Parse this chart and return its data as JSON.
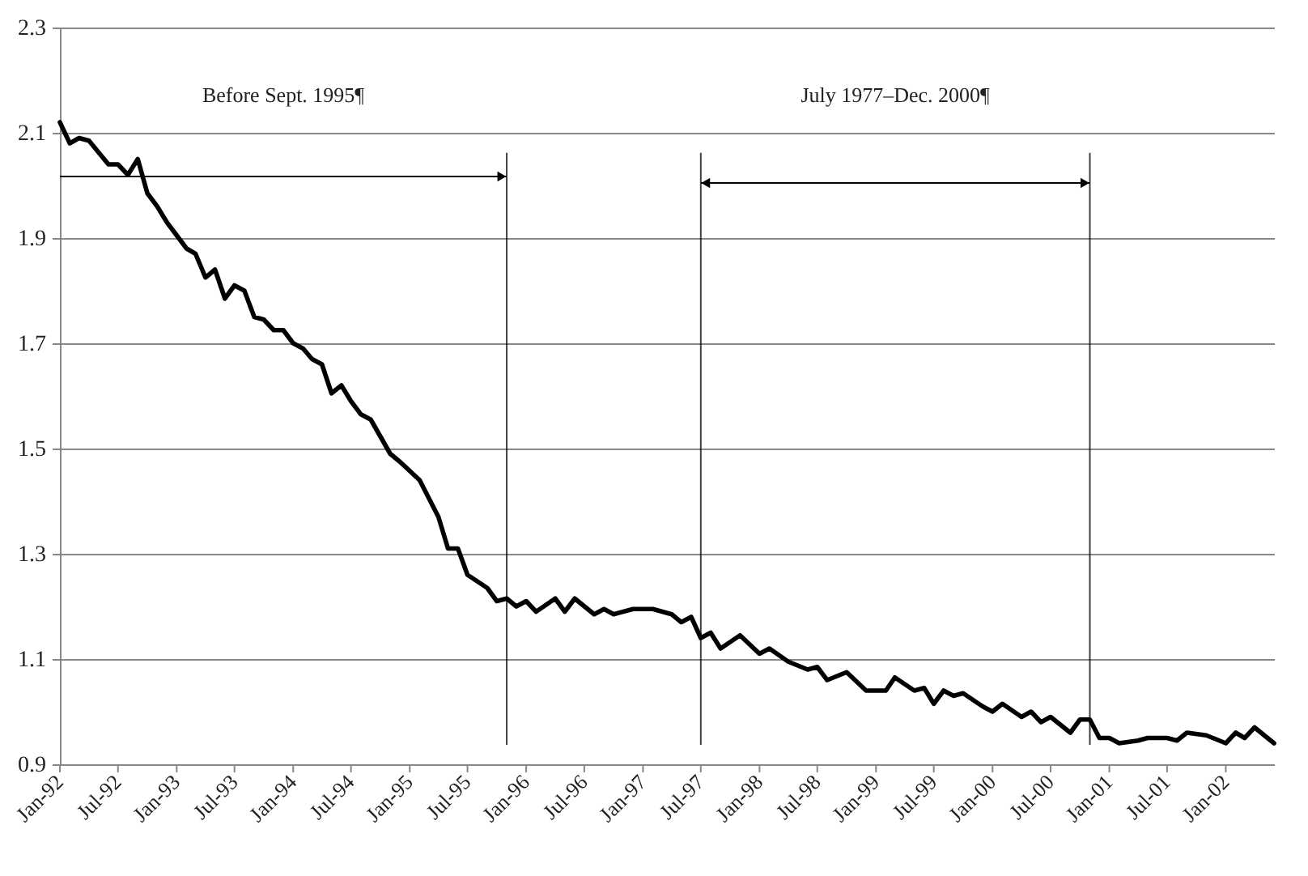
{
  "chart_data": {
    "type": "line",
    "x": [
      "1992-01",
      "1992-02",
      "1992-03",
      "1992-04",
      "1992-06",
      "1992-07",
      "1992-08",
      "1992-09",
      "1992-10",
      "1992-11",
      "1992-12",
      "1993-02",
      "1993-03",
      "1993-04",
      "1993-05",
      "1993-06",
      "1993-07",
      "1993-08",
      "1993-09",
      "1993-10",
      "1993-11",
      "1993-12",
      "1994-01",
      "1994-02",
      "1994-03",
      "1994-04",
      "1994-05",
      "1994-06",
      "1994-07",
      "1994-08",
      "1994-09",
      "1994-11",
      "1994-12",
      "1995-02",
      "1995-04",
      "1995-05",
      "1995-06",
      "1995-07",
      "1995-09",
      "1995-10",
      "1995-11",
      "1995-12",
      "1996-01",
      "1996-02",
      "1996-04",
      "1996-05",
      "1996-06",
      "1996-08",
      "1996-09",
      "1996-10",
      "1996-12",
      "1997-02",
      "1997-04",
      "1997-05",
      "1997-06",
      "1997-07",
      "1997-08",
      "1997-09",
      "1997-11",
      "1998-01",
      "1998-02",
      "1998-04",
      "1998-06",
      "1998-07",
      "1998-08",
      "1998-10",
      "1998-12",
      "1999-02",
      "1999-03",
      "1999-05",
      "1999-06",
      "1999-07",
      "1999-08",
      "1999-09",
      "1999-10",
      "1999-12",
      "2000-01",
      "2000-02",
      "2000-04",
      "2000-05",
      "2000-06",
      "2000-07",
      "2000-09",
      "2000-10",
      "2000-11",
      "2000-12",
      "2001-01",
      "2001-02",
      "2001-04",
      "2001-05",
      "2001-07",
      "2001-08",
      "2001-09",
      "2001-11",
      "2002-01",
      "2002-02",
      "2002-03",
      "2002-04",
      "2002-06"
    ],
    "series": [
      {
        "color": "#000000",
        "values": [
          2.12,
          2.08,
          2.09,
          2.085,
          2.04,
          2.04,
          2.02,
          2.05,
          1.985,
          1.96,
          1.93,
          1.88,
          1.87,
          1.825,
          1.84,
          1.785,
          1.81,
          1.8,
          1.75,
          1.745,
          1.725,
          1.725,
          1.7,
          1.69,
          1.67,
          1.66,
          1.605,
          1.62,
          1.59,
          1.565,
          1.555,
          1.49,
          1.475,
          1.44,
          1.37,
          1.31,
          1.31,
          1.26,
          1.235,
          1.21,
          1.215,
          1.2,
          1.21,
          1.19,
          1.215,
          1.19,
          1.215,
          1.185,
          1.195,
          1.185,
          1.195,
          1.195,
          1.185,
          1.17,
          1.18,
          1.14,
          1.15,
          1.12,
          1.145,
          1.11,
          1.12,
          1.095,
          1.08,
          1.085,
          1.06,
          1.075,
          1.04,
          1.04,
          1.065,
          1.04,
          1.045,
          1.015,
          1.04,
          1.03,
          1.035,
          1.01,
          1.0,
          1.015,
          0.99,
          1.0,
          0.98,
          0.99,
          0.96,
          0.985,
          0.985,
          0.95,
          0.95,
          0.94,
          0.945,
          0.95,
          0.95,
          0.945,
          0.96,
          0.955,
          0.94,
          0.96,
          0.95,
          0.97,
          0.94
        ]
      }
    ],
    "xlim": [
      "1992-01",
      "2002-06"
    ],
    "xticks": [
      {
        "value": "1992-01",
        "label": "Jan-92"
      },
      {
        "value": "1992-07",
        "label": "Jul-92"
      },
      {
        "value": "1993-01",
        "label": "Jan-93"
      },
      {
        "value": "1993-07",
        "label": "Jul-93"
      },
      {
        "value": "1994-01",
        "label": "Jan-94"
      },
      {
        "value": "1994-07",
        "label": "Jul-94"
      },
      {
        "value": "1995-01",
        "label": "Jan-95"
      },
      {
        "value": "1995-07",
        "label": "Jul-95"
      },
      {
        "value": "1996-01",
        "label": "Jan-96"
      },
      {
        "value": "1996-07",
        "label": "Jul-96"
      },
      {
        "value": "1997-01",
        "label": "Jan-97"
      },
      {
        "value": "1997-07",
        "label": "Jul-97"
      },
      {
        "value": "1998-01",
        "label": "Jan-98"
      },
      {
        "value": "1998-07",
        "label": "Jul-98"
      },
      {
        "value": "1999-01",
        "label": "Jan-99"
      },
      {
        "value": "1999-07",
        "label": "Jul-99"
      },
      {
        "value": "2000-01",
        "label": "Jan-00"
      },
      {
        "value": "2000-07",
        "label": "Jul-00"
      },
      {
        "value": "2001-01",
        "label": "Jan-01"
      },
      {
        "value": "2001-07",
        "label": "Jul-01"
      },
      {
        "value": "2002-01",
        "label": "Jan-02"
      }
    ],
    "ylim": [
      0.9,
      2.3
    ],
    "yticks": [
      {
        "value": 0.9,
        "label": "0.9"
      },
      {
        "value": 1.1,
        "label": "1.1"
      },
      {
        "value": 1.3,
        "label": "1.3"
      },
      {
        "value": 1.5,
        "label": "1.5"
      },
      {
        "value": 1.7,
        "label": "1.7"
      },
      {
        "value": 1.9,
        "label": "1.9"
      },
      {
        "value": 2.1,
        "label": "2.1"
      },
      {
        "value": 2.3,
        "label": "2.3"
      }
    ],
    "grid": "y",
    "line_style": "solid",
    "ref_lines": [
      {
        "axis": "x",
        "value": "1995-11",
        "color": "#000000"
      },
      {
        "axis": "x",
        "value": "1997-07",
        "color": "#000000"
      },
      {
        "axis": "x",
        "value": "2000-11",
        "color": "#000000"
      }
    ],
    "annotations": [
      "Before Sept. 1995¶",
      "July 1977–Dec. 2000¶"
    ]
  }
}
